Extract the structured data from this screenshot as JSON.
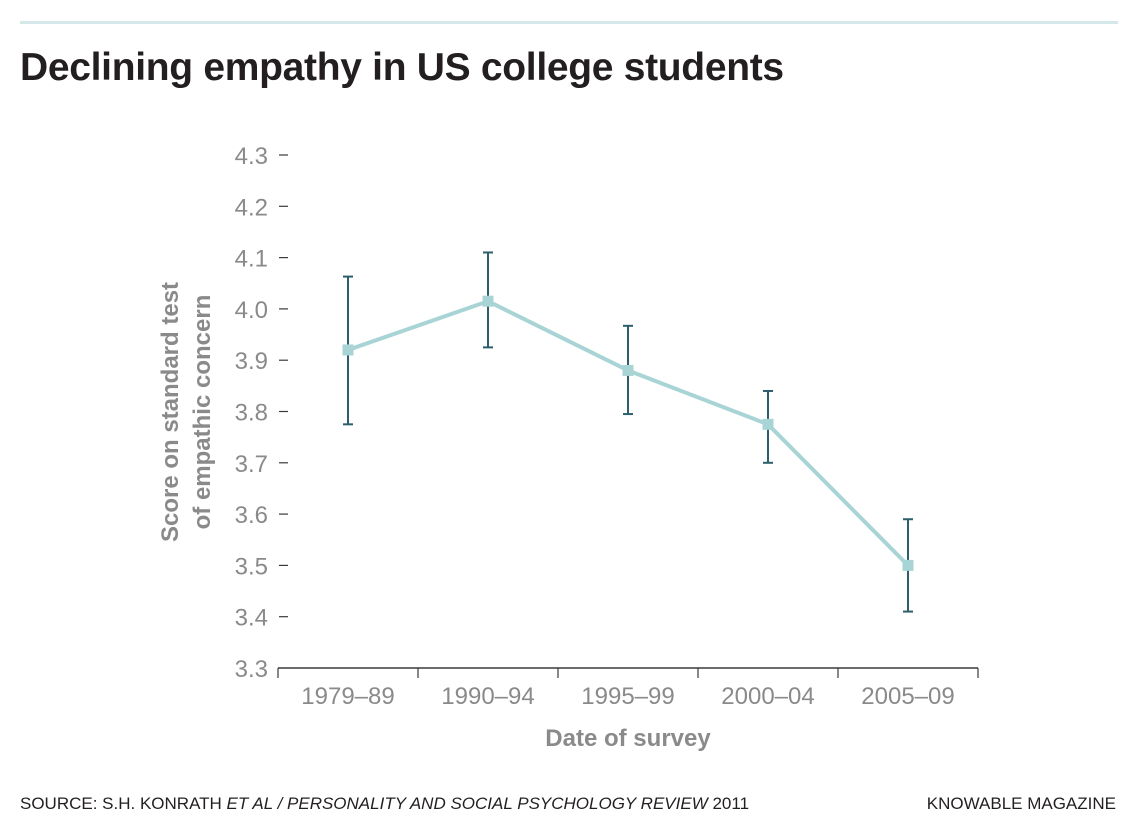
{
  "title": "Declining empathy in US college students",
  "footer": {
    "source_prefix": "SOURCE: S.H. KONRATH ",
    "source_authors_italic": "ET AL / PERSONALITY AND SOCIAL PSYCHOLOGY REVIEW",
    "source_year": " 2011",
    "publisher": "KNOWABLE MAGAZINE"
  },
  "colors": {
    "line": "#a9d4d6",
    "error_bar": "#2c5f6b",
    "axis": "#3a3a3a",
    "tick_label": "#8a8a8a",
    "axis_title": "#8a8a8a",
    "title": "#231f20",
    "top_rule": "#d4e8ea"
  },
  "chart_data": {
    "type": "line",
    "title": "",
    "xlabel": "Date of survey",
    "ylabel_lines": [
      "Score on standard test",
      "of empathic concern"
    ],
    "categories": [
      "1979–89",
      "1990–94",
      "1995–99",
      "2000–04",
      "2005–09"
    ],
    "values": [
      3.92,
      4.015,
      3.88,
      3.775,
      3.5
    ],
    "error_low": [
      3.775,
      3.925,
      3.795,
      3.7,
      3.41
    ],
    "error_high": [
      4.063,
      4.11,
      3.967,
      3.84,
      3.59
    ],
    "yticks": [
      "3.3",
      "3.4",
      "3.5",
      "3.6",
      "3.7",
      "3.8",
      "3.9",
      "4.0",
      "4.1",
      "4.2",
      "4.3"
    ],
    "ylim": [
      3.3,
      4.3
    ],
    "grid": false,
    "legend": "none"
  }
}
